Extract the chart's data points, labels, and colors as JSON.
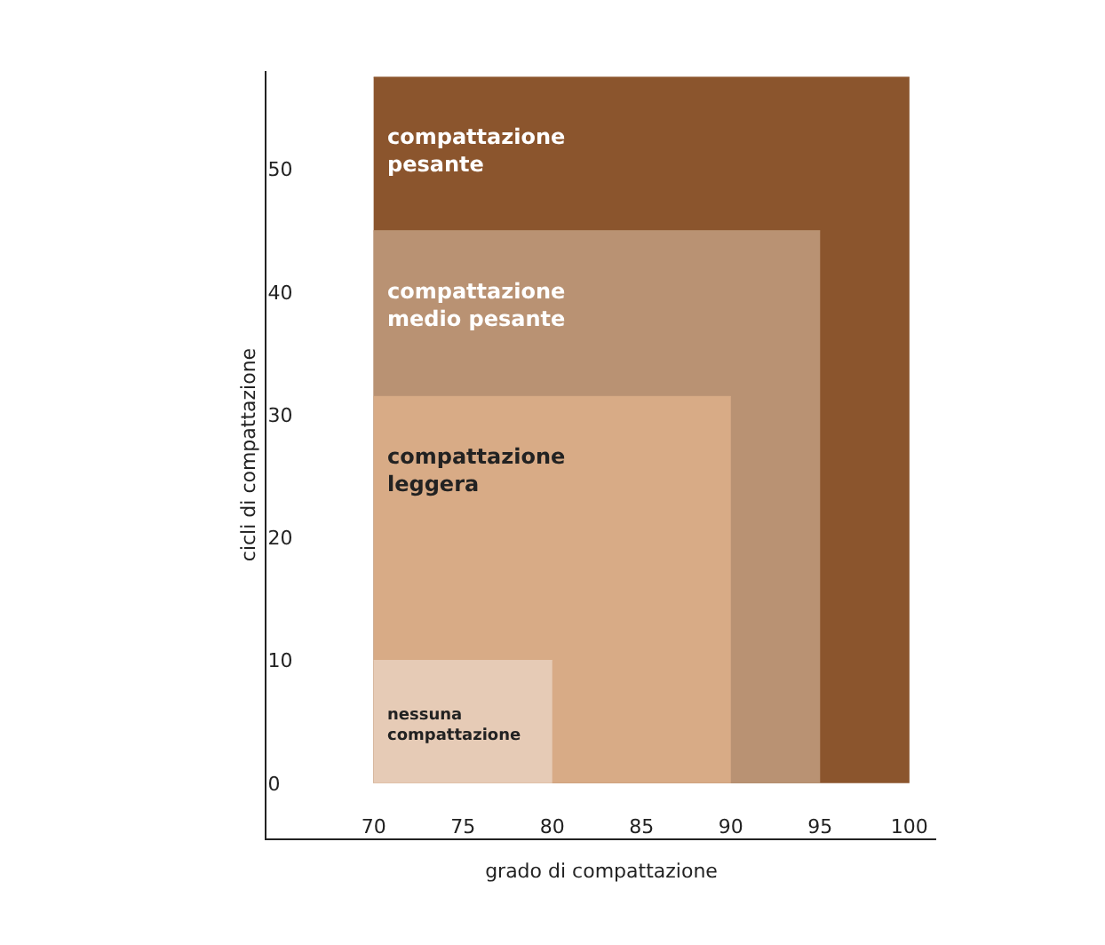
{
  "chart_data": {
    "type": "area",
    "xlabel": "grado di compattazione",
    "ylabel": "cicli di compattazione",
    "xlim": [
      64,
      101.5
    ],
    "xticks": [
      70,
      75,
      80,
      85,
      90,
      95,
      100
    ],
    "ylim": [
      -4.5,
      58
    ],
    "yticks": [
      0,
      10,
      20,
      30,
      40,
      50
    ],
    "legend": false,
    "line_style": "solid",
    "marker": "none",
    "series": [
      {
        "name": "compattazione pesante",
        "color": "#8b552d",
        "x": [
          70,
          100
        ],
        "values": [
          57.5,
          57.5
        ]
      },
      {
        "name": "compattazione medio pesante",
        "color": "#b99273",
        "x": [
          70,
          95
        ],
        "values": [
          45,
          45
        ]
      },
      {
        "name": "compattazione leggera",
        "color": "#d8ab86",
        "x": [
          70,
          90
        ],
        "values": [
          31.5,
          31.5
        ]
      },
      {
        "name": "nessuna compattazione",
        "color": "#e6cbb6",
        "x": [
          70,
          80
        ],
        "values": [
          10,
          10
        ]
      }
    ]
  }
}
